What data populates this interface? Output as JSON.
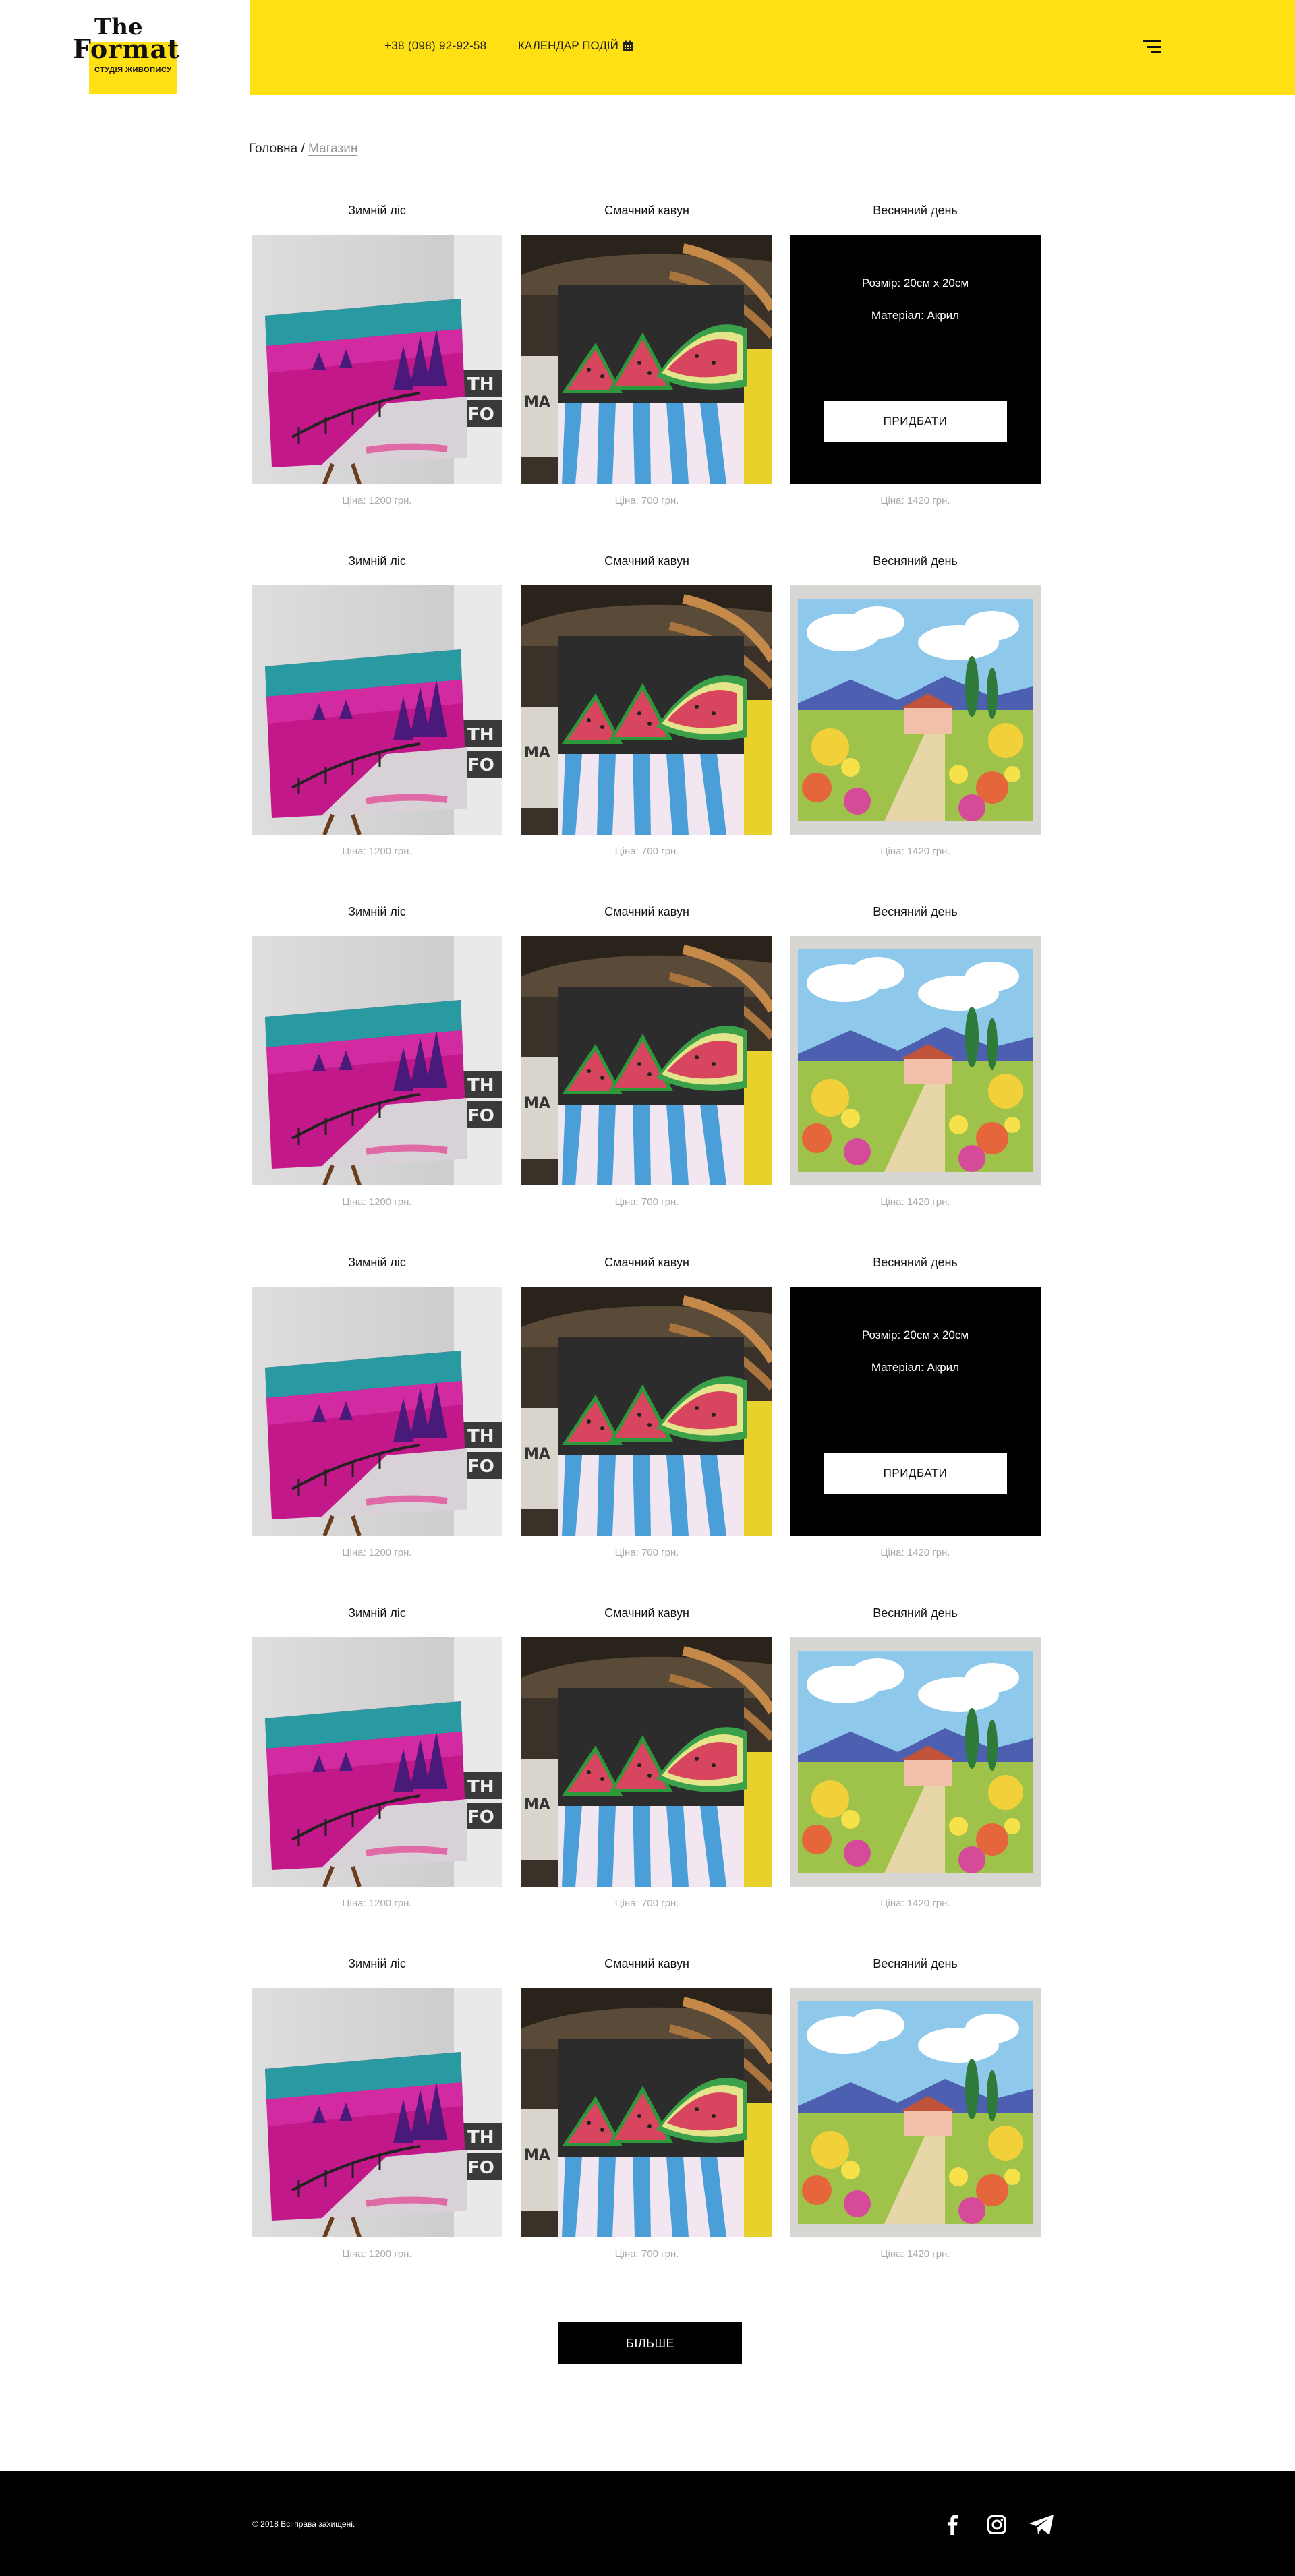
{
  "brand": {
    "logo_line1": "The",
    "logo_line2": "Format",
    "logo_sub": "СТУДІЯ ЖИВОПИСУ",
    "accent_color": "#ffe014"
  },
  "header": {
    "phone": "+38 (098) 92-92-58",
    "calendar_label": "КАЛЕНДАР ПОДІЙ",
    "calendar_icon": "calendar-icon",
    "menu_icon": "hamburger-menu-icon"
  },
  "breadcrumb": {
    "home": "Головна",
    "separator": "/",
    "current": "Магазин"
  },
  "products": {
    "rows": [
      {
        "items": [
          {
            "title": "Зимній ліс",
            "price": "Ціна: 1200 грн.",
            "image": "winter-forest-painting",
            "overlay": false
          },
          {
            "title": "Смачний кавун",
            "price": "Ціна: 700 грн.",
            "image": "watermelon-painting",
            "overlay": false
          },
          {
            "title": "Весняний день",
            "price": "Ціна: 1420 грн.",
            "image": "spring-day-painting",
            "overlay": true,
            "size": "Розмір: 20см х 20см",
            "material": "Матеріал: Акрил",
            "buy_label": "ПРИДБАТИ"
          }
        ]
      },
      {
        "items": [
          {
            "title": "Зимній ліс",
            "price": "Ціна: 1200 грн.",
            "image": "winter-forest-painting",
            "overlay": false
          },
          {
            "title": "Смачний кавун",
            "price": "Ціна: 700 грн.",
            "image": "watermelon-painting",
            "overlay": false
          },
          {
            "title": "Весняний день",
            "price": "Ціна: 1420 грн.",
            "image": "spring-day-painting",
            "overlay": false
          }
        ]
      },
      {
        "items": [
          {
            "title": "Зимній ліс",
            "price": "Ціна: 1200 грн.",
            "image": "winter-forest-painting",
            "overlay": false
          },
          {
            "title": "Смачний кавун",
            "price": "Ціна: 700 грн.",
            "image": "watermelon-painting",
            "overlay": false
          },
          {
            "title": "Весняний день",
            "price": "Ціна: 1420 грн.",
            "image": "spring-day-painting",
            "overlay": false
          }
        ]
      },
      {
        "items": [
          {
            "title": "Зимній ліс",
            "price": "Ціна: 1200 грн.",
            "image": "winter-forest-painting",
            "overlay": false
          },
          {
            "title": "Смачний кавун",
            "price": "Ціна: 700 грн.",
            "image": "watermelon-painting",
            "overlay": false
          },
          {
            "title": "Весняний день",
            "price": "Ціна: 1420 грн.",
            "image": "spring-day-painting",
            "overlay": true,
            "size": "Розмір: 20см х 20см",
            "material": "Матеріал: Акрил",
            "buy_label": "ПРИДБАТИ"
          }
        ]
      },
      {
        "items": [
          {
            "title": "Зимній ліс",
            "price": "Ціна: 1200 грн.",
            "image": "winter-forest-painting",
            "overlay": false
          },
          {
            "title": "Смачний кавун",
            "price": "Ціна: 700 грн.",
            "image": "watermelon-painting",
            "overlay": false
          },
          {
            "title": "Весняний день",
            "price": "Ціна: 1420 грн.",
            "image": "spring-day-painting",
            "overlay": false
          }
        ]
      },
      {
        "items": [
          {
            "title": "Зимній ліс",
            "price": "Ціна: 1200 грн.",
            "image": "winter-forest-painting",
            "overlay": false
          },
          {
            "title": "Смачний кавун",
            "price": "Ціна: 700 грн.",
            "image": "watermelon-painting",
            "overlay": false
          },
          {
            "title": "Весняний день",
            "price": "Ціна: 1420 грн.",
            "image": "spring-day-painting",
            "overlay": false
          }
        ]
      }
    ]
  },
  "more_button": "БІЛЬШЕ",
  "footer": {
    "copyright": "© 2018 Всі права захищені.",
    "socials": [
      {
        "icon": "facebook-icon"
      },
      {
        "icon": "instagram-icon"
      },
      {
        "icon": "telegram-icon"
      }
    ]
  }
}
